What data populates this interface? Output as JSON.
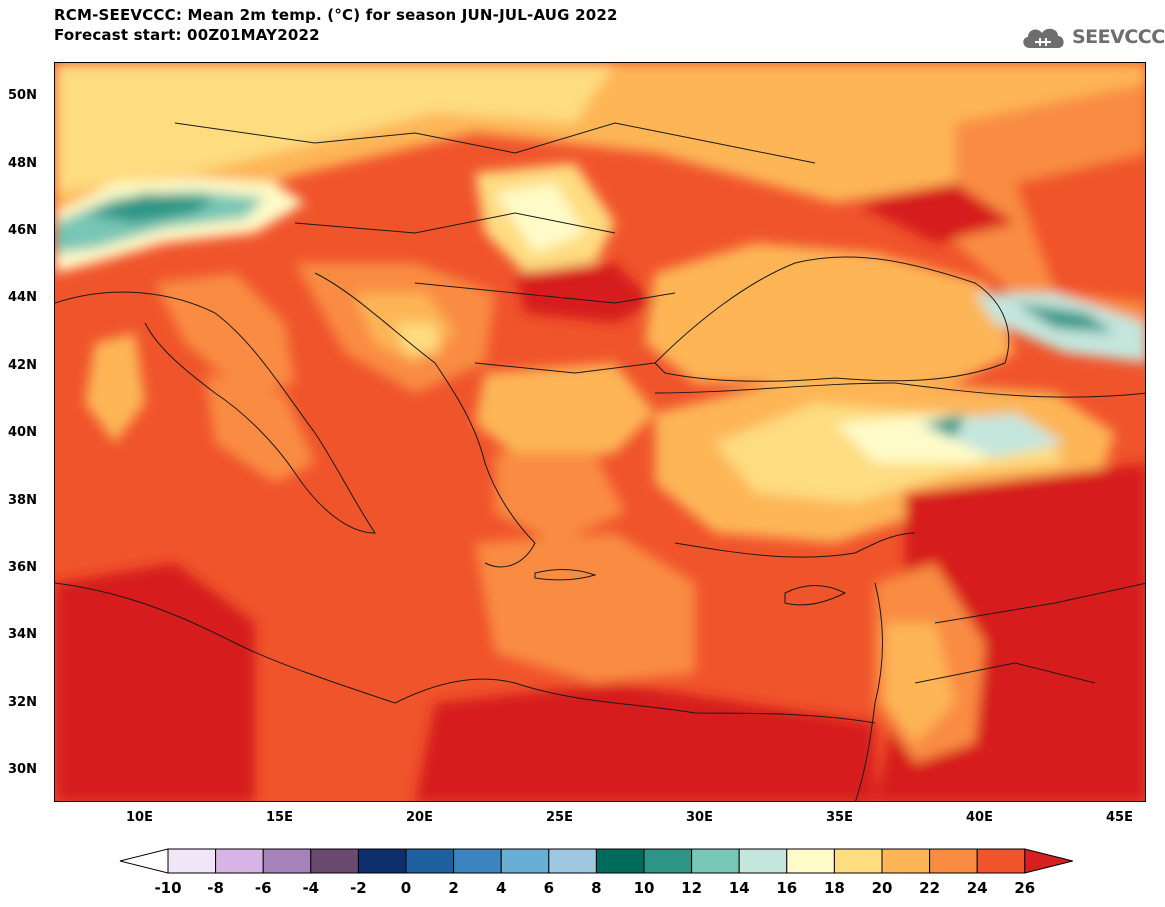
{
  "title": {
    "line1": "RCM-SEEVCCC: Mean 2m temp. (°C) for season JUN-JUL-AUG 2022",
    "line2": "Forecast start: 00Z01MAY2022"
  },
  "logo": {
    "text": "SEEVCCC",
    "icon": "cloud-icon"
  },
  "map": {
    "variable": "Mean 2m temperature",
    "units": "°C",
    "region_extent": {
      "lon_min": 7,
      "lon_max": 46,
      "lat_min": 29,
      "lat_max": 51
    }
  },
  "axes": {
    "lat_ticks": [
      {
        "value": 50,
        "label": "50N"
      },
      {
        "value": 48,
        "label": "48N"
      },
      {
        "value": 46,
        "label": "46N"
      },
      {
        "value": 44,
        "label": "44N"
      },
      {
        "value": 42,
        "label": "42N"
      },
      {
        "value": 40,
        "label": "40N"
      },
      {
        "value": 38,
        "label": "38N"
      },
      {
        "value": 36,
        "label": "36N"
      },
      {
        "value": 34,
        "label": "34N"
      },
      {
        "value": 32,
        "label": "32N"
      },
      {
        "value": 30,
        "label": "30N"
      }
    ],
    "lon_ticks": [
      {
        "value": 10,
        "label": "10E"
      },
      {
        "value": 15,
        "label": "15E"
      },
      {
        "value": 20,
        "label": "20E"
      },
      {
        "value": 25,
        "label": "25E"
      },
      {
        "value": 30,
        "label": "30E"
      },
      {
        "value": 35,
        "label": "35E"
      },
      {
        "value": 40,
        "label": "40E"
      },
      {
        "value": 45,
        "label": "45E"
      }
    ]
  },
  "colorbar": {
    "labels": [
      "-10",
      "-8",
      "-6",
      "-4",
      "-2",
      "0",
      "2",
      "4",
      "6",
      "8",
      "10",
      "12",
      "14",
      "16",
      "18",
      "20",
      "22",
      "24",
      "26"
    ],
    "colors": [
      "#f0e6f7",
      "#d8b4e6",
      "#a583b9",
      "#6b4a72",
      "#0d2f6b",
      "#1f5fa0",
      "#3b84c0",
      "#6aaed6",
      "#9dc8e0",
      "#006b5a",
      "#2c9585",
      "#77c6b6",
      "#c4e6dd",
      "#fffbc8",
      "#fedc80",
      "#fdb557",
      "#f98c42",
      "#f0542b"
    ],
    "under_color": "#ffffff",
    "over_color": "#d61f1f"
  }
}
